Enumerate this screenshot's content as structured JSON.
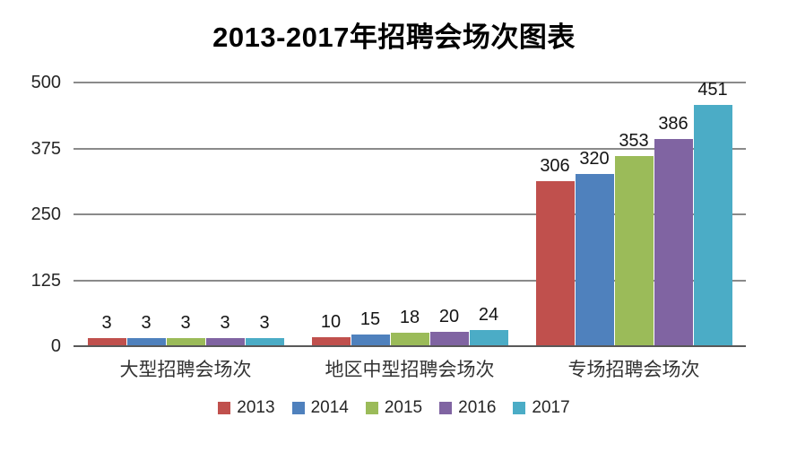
{
  "title": "2013-2017年招聘会场次图表",
  "chart_data": {
    "type": "bar",
    "title": "2013-2017年招聘会场次图表",
    "categories": [
      "大型招聘会场次",
      "地区中型招聘会场次",
      "专场招聘会场次"
    ],
    "series": [
      {
        "name": "2013",
        "color": "#C0504D",
        "values": [
          3,
          10,
          306
        ]
      },
      {
        "name": "2014",
        "color": "#4F81BD",
        "values": [
          3,
          15,
          320
        ]
      },
      {
        "name": "2015",
        "color": "#9BBB59",
        "values": [
          3,
          18,
          353
        ]
      },
      {
        "name": "2016",
        "color": "#8064A2",
        "values": [
          3,
          20,
          386
        ]
      },
      {
        "name": "2017",
        "color": "#4BACC6",
        "values": [
          3,
          24,
          451
        ]
      }
    ],
    "xlabel": "",
    "ylabel": "",
    "ylim": [
      0,
      500
    ],
    "yticks": [
      0,
      125,
      250,
      375,
      500
    ],
    "grid": true,
    "data_labels": true,
    "legend_position": "bottom"
  },
  "colors": {
    "background": "#ffffff",
    "gridline": "#8a8a8a",
    "baseline": "#595959",
    "title_text": "#000000",
    "axis_text": "#262626",
    "data_label_text": "#141414"
  }
}
